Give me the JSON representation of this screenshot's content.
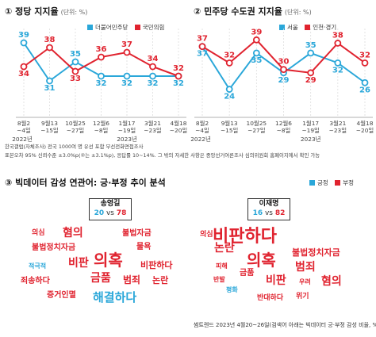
{
  "colors": {
    "blue": "#2aa7d9",
    "red": "#e0232f"
  },
  "section1": {
    "title": "① 정당 지지율",
    "unit": "(단위: %)"
  },
  "section2": {
    "title": "② 민주당 수도권 지지율",
    "unit": "(단위: %)"
  },
  "section3": {
    "title": "③ 빅데이터 감성 연관어: 긍·부정 추이 분석"
  },
  "x_dates": [
    "8월2\n~4일",
    "9월13\n~15일",
    "10월25\n~27일",
    "12월6\n~8일",
    "1월17\n~19일",
    "3월21\n~23일",
    "4월18\n~20일"
  ],
  "year_labels": {
    "first": "2022년",
    "second": "2023년"
  },
  "chart_data": [
    {
      "type": "line",
      "title": "① 정당 지지율",
      "categories": [
        "8월2~4일",
        "9월13~15일",
        "10월25~27일",
        "12월6~8일",
        "1월17~19일",
        "3월21~23일",
        "4월18~20일"
      ],
      "series": [
        {
          "name": "더불어민주당",
          "color": "#2aa7d9",
          "values": [
            39,
            31,
            35,
            32,
            32,
            32,
            32
          ]
        },
        {
          "name": "국민의힘",
          "color": "#e0232f",
          "values": [
            34,
            38,
            33,
            36,
            37,
            34,
            32
          ]
        }
      ],
      "ylim": [
        28,
        41
      ],
      "legend": "top-right"
    },
    {
      "type": "line",
      "title": "② 민주당 수도권 지지율",
      "categories": [
        "8월2~4일",
        "9월13~15일",
        "10월25~27일",
        "12월6~8일",
        "1월17~19일",
        "3월21~23일",
        "4월18~20일"
      ],
      "series": [
        {
          "name": "서울",
          "color": "#2aa7d9",
          "values": [
            37,
            24,
            35,
            29,
            35,
            32,
            26
          ]
        },
        {
          "name": "인천·경기",
          "color": "#e0232f",
          "values": [
            37,
            32,
            39,
            30,
            29,
            38,
            32
          ]
        }
      ],
      "ylim": [
        21,
        41
      ],
      "legend": "top-right"
    }
  ],
  "notes": [
    "한국갤럽(자체조사) 전국 1000여 명 유선 포함 무선전화면접조사",
    "표본오차 95% 신뢰수준 ±3.0%p(②는 ±3.1%p), 응답률 10~14%. 그 밖의 자세한 사항은 중앙선거여론조사 심의위원회 홈페이지에서 확인 가능"
  ],
  "legend3": {
    "positive": "긍정",
    "negative": "부정"
  },
  "candidates": {
    "left": {
      "name": "송영길",
      "positive": "20",
      "vs": "vs",
      "negative": "78"
    },
    "right": {
      "name": "이재명",
      "positive": "16",
      "vs": "vs",
      "negative": "82"
    }
  },
  "wordcloud_left": [
    {
      "text": "의심",
      "tone": "neg",
      "size": 9
    },
    {
      "text": "혐의",
      "tone": "neg",
      "size": 14
    },
    {
      "text": "불법자금",
      "tone": "neg",
      "size": 10
    },
    {
      "text": "불법정치자금",
      "tone": "neg",
      "size": 10
    },
    {
      "text": "물욕",
      "tone": "neg",
      "size": 10
    },
    {
      "text": "적극적",
      "tone": "pos",
      "size": 8
    },
    {
      "text": "비판",
      "tone": "neg",
      "size": 14
    },
    {
      "text": "의혹",
      "tone": "neg",
      "size": 20
    },
    {
      "text": "비판하다",
      "tone": "neg",
      "size": 11
    },
    {
      "text": "죄송하다",
      "tone": "neg",
      "size": 10
    },
    {
      "text": "금품",
      "tone": "neg",
      "size": 14
    },
    {
      "text": "범죄",
      "tone": "neg",
      "size": 12
    },
    {
      "text": "논란",
      "tone": "neg",
      "size": 11
    },
    {
      "text": "증거인멸",
      "tone": "neg",
      "size": 10
    },
    {
      "text": "해결하다",
      "tone": "pos",
      "size": 15
    }
  ],
  "wordcloud_right": [
    {
      "text": "비판하다",
      "tone": "neg",
      "size": 22
    },
    {
      "text": "의심",
      "tone": "neg",
      "size": 9
    },
    {
      "text": "논란",
      "tone": "neg",
      "size": 14
    },
    {
      "text": "의혹",
      "tone": "neg",
      "size": 20
    },
    {
      "text": "불법정치자금",
      "tone": "neg",
      "size": 11
    },
    {
      "text": "피해",
      "tone": "neg",
      "size": 8
    },
    {
      "text": "금품",
      "tone": "neg",
      "size": 10
    },
    {
      "text": "범죄",
      "tone": "neg",
      "size": 14
    },
    {
      "text": "반발",
      "tone": "neg",
      "size": 8
    },
    {
      "text": "비판",
      "tone": "neg",
      "size": 14
    },
    {
      "text": "우려",
      "tone": "neg",
      "size": 8
    },
    {
      "text": "혐의",
      "tone": "neg",
      "size": 14
    },
    {
      "text": "평화",
      "tone": "pos",
      "size": 8
    },
    {
      "text": "반대하다",
      "tone": "neg",
      "size": 9
    },
    {
      "text": "위기",
      "tone": "neg",
      "size": 9
    }
  ],
  "footer": "썸트렌드 2023년 4월20~26일(검색어 아래는 빅데이터 긍·부정 감성 비율, %)"
}
